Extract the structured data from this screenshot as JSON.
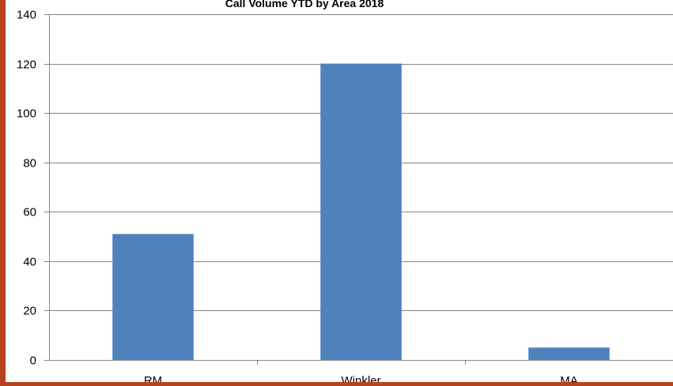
{
  "colors": {
    "bar": "#4f81bd",
    "frame": "#b5441f",
    "grid": "#868686"
  },
  "chart_data": {
    "type": "bar",
    "title": "Call Volume  YTD  by Area 2018",
    "xlabel": "",
    "ylabel": "",
    "categories": [
      "RM",
      "Winkler",
      "MA"
    ],
    "values": [
      51,
      120,
      5
    ],
    "ylim": [
      0,
      140
    ],
    "yticks": [
      0,
      20,
      40,
      60,
      80,
      100,
      120,
      140
    ],
    "grid": true,
    "legend": "none"
  }
}
